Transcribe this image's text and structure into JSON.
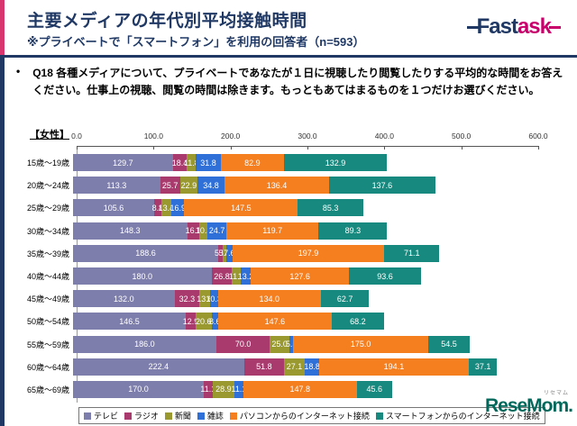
{
  "header": {
    "title": "主要メディアの年代別平均接触時間",
    "subtitle": "※プライベートで「スマートフォン」を利用の回答者（n=593）",
    "accent_navy": "#1F3864",
    "accent_pink": "#D8356F"
  },
  "brand": {
    "part1": "Fast",
    "part2": "ask",
    "navy": "#1F3864",
    "pink": "#C9006B"
  },
  "question": {
    "bullet": "•",
    "text": "Q18 各種メディアについて、プライベートであなたが１日に視聴したり閲覧したりする平均的な時間をお答えください。仕事上の視聴、閲覧の時間は除きます。もっともあてはまるものを１つだけお選びください。"
  },
  "section_label": "【女性】",
  "chart_data": {
    "type": "bar",
    "orientation": "horizontal",
    "stacked": true,
    "title": "主要メディアの年代別平均接触時間（女性）",
    "xlim": [
      0,
      600
    ],
    "x_tick_labels": [
      "0.0",
      "100.0",
      "200.0",
      "300.0",
      "400.0",
      "500.0",
      "600.0"
    ],
    "grid": false,
    "legend_position": "bottom",
    "categories": [
      "15歳～19歳",
      "20歳～24歳",
      "25歳～29歳",
      "30歳～34歳",
      "35歳～39歳",
      "40歳～44歳",
      "45歳～49歳",
      "50歳～54歳",
      "55歳～59歳",
      "60歳～64歳",
      "65歳～69歳"
    ],
    "series": [
      {
        "name": "テレビ",
        "color": "#7E7EAC",
        "values": [
          129.7,
          113.3,
          105.6,
          148.3,
          188.6,
          180.0,
          132.0,
          146.5,
          186.0,
          222.4,
          170.0
        ]
      },
      {
        "name": "ラジオ",
        "color": "#A93A6E",
        "values": [
          18.4,
          25.7,
          8.8,
          16.1,
          5.5,
          26.8,
          32.3,
          12.9,
          70.0,
          51.8,
          11.1
        ]
      },
      {
        "name": "新聞",
        "color": "#99992F",
        "values": [
          11.8,
          22.9,
          13.4,
          10.3,
          5.3,
          11.1,
          13.6,
          20.6,
          25.0,
          27.1,
          28.9
        ]
      },
      {
        "name": "雑誌",
        "color": "#2E6FD8",
        "values": [
          31.8,
          34.8,
          16.9,
          24.7,
          7.6,
          13.2,
          10.3,
          8.6,
          5.5,
          18.8,
          11.1
        ]
      },
      {
        "name": "パソコンからのインターネット接続",
        "color": "#F57E1E",
        "values": [
          82.9,
          136.4,
          147.5,
          119.7,
          197.9,
          127.6,
          134.0,
          147.6,
          175.0,
          194.1,
          147.8
        ]
      },
      {
        "name": "スマートフォンからのインターネット接続",
        "color": "#17897E",
        "values": [
          132.9,
          137.6,
          85.3,
          89.3,
          71.1,
          93.6,
          62.7,
          68.2,
          54.5,
          37.1,
          45.6
        ]
      }
    ]
  },
  "footer_brand": {
    "text": "ReseMom.",
    "ruby": "リセマム",
    "color": "#00695C"
  }
}
